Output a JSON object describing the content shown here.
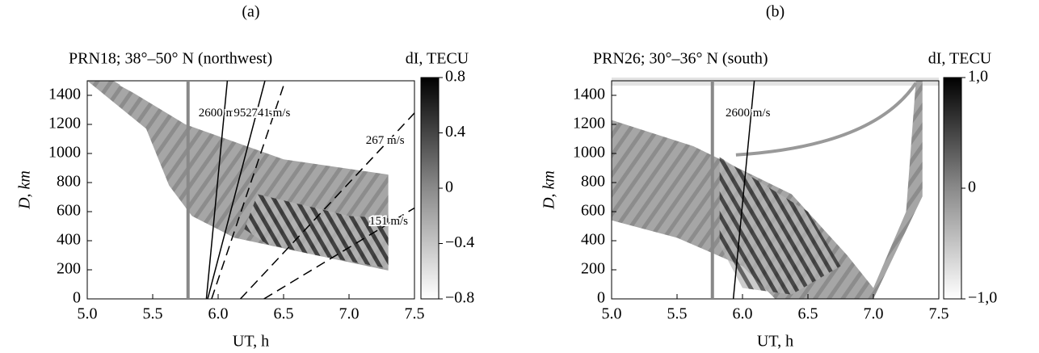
{
  "chart_data": [
    {
      "type": "distance-time",
      "panel_label": "(a)",
      "title": "PRN18; 38°–50° N (northwest)",
      "x_label": "UT, h",
      "y_label": "D, km",
      "colorbar_label": "dI, TECU",
      "xlim": [
        5,
        7.5
      ],
      "xticks": [
        {
          "value": 5,
          "label": "5.0"
        },
        5.5,
        {
          "value": 6,
          "label": "6.0"
        },
        6.5,
        {
          "value": 7,
          "label": "7.0"
        },
        7.5
      ],
      "ylim": [
        0,
        1500
      ],
      "yticks": [
        0,
        200,
        400,
        600,
        800,
        1000,
        1200,
        1400
      ],
      "clim": [
        -0.8,
        0.8
      ],
      "cticks": [
        0.8,
        0.4,
        0,
        {
          "value": -0.4,
          "label": "−0.4"
        },
        {
          "value": -0.8,
          "label": "−0.8"
        }
      ],
      "reference_time": 5.77,
      "speed_lines": [
        {
          "label": "2600 m/s",
          "speed": 2600,
          "t0": 5.91,
          "dashed": false
        },
        {
          "label": "952 m/s",
          "speed": 952,
          "t0": 5.92,
          "dashed": false
        },
        {
          "label": "741 m/s",
          "speed": 741,
          "t0": 5.95,
          "dashed": true
        },
        {
          "label": "267 m/s",
          "speed": 267,
          "t0": 6.17,
          "dashed": true
        },
        {
          "label": "151 m/s",
          "speed": 151,
          "t0": 6.35,
          "dashed": true
        }
      ]
    },
    {
      "type": "distance-time",
      "panel_label": "(b)",
      "title": "PRN26; 30°–36° N (south)",
      "x_label": "UT, h",
      "y_label": "D, km",
      "colorbar_label": "dI, TECU",
      "xlim": [
        5,
        7.5
      ],
      "xticks": [
        {
          "value": 5,
          "label": "5.0"
        },
        5.5,
        {
          "value": 6,
          "label": "6.0"
        },
        6.5,
        {
          "value": 7,
          "label": "7.0"
        },
        7.5
      ],
      "ylim": [
        0,
        1500
      ],
      "yticks": [
        0,
        200,
        400,
        600,
        800,
        1000,
        1200,
        1400
      ],
      "clim": [
        -1,
        1
      ],
      "cticks": [
        {
          "value": 1,
          "label": "1,0"
        },
        0,
        {
          "value": -1,
          "label": "−1,0"
        }
      ],
      "reference_time": 5.77,
      "speed_lines": [
        {
          "label": "2600 m/s",
          "speed": 2600,
          "t0": 5.93,
          "dashed": false
        }
      ]
    }
  ]
}
